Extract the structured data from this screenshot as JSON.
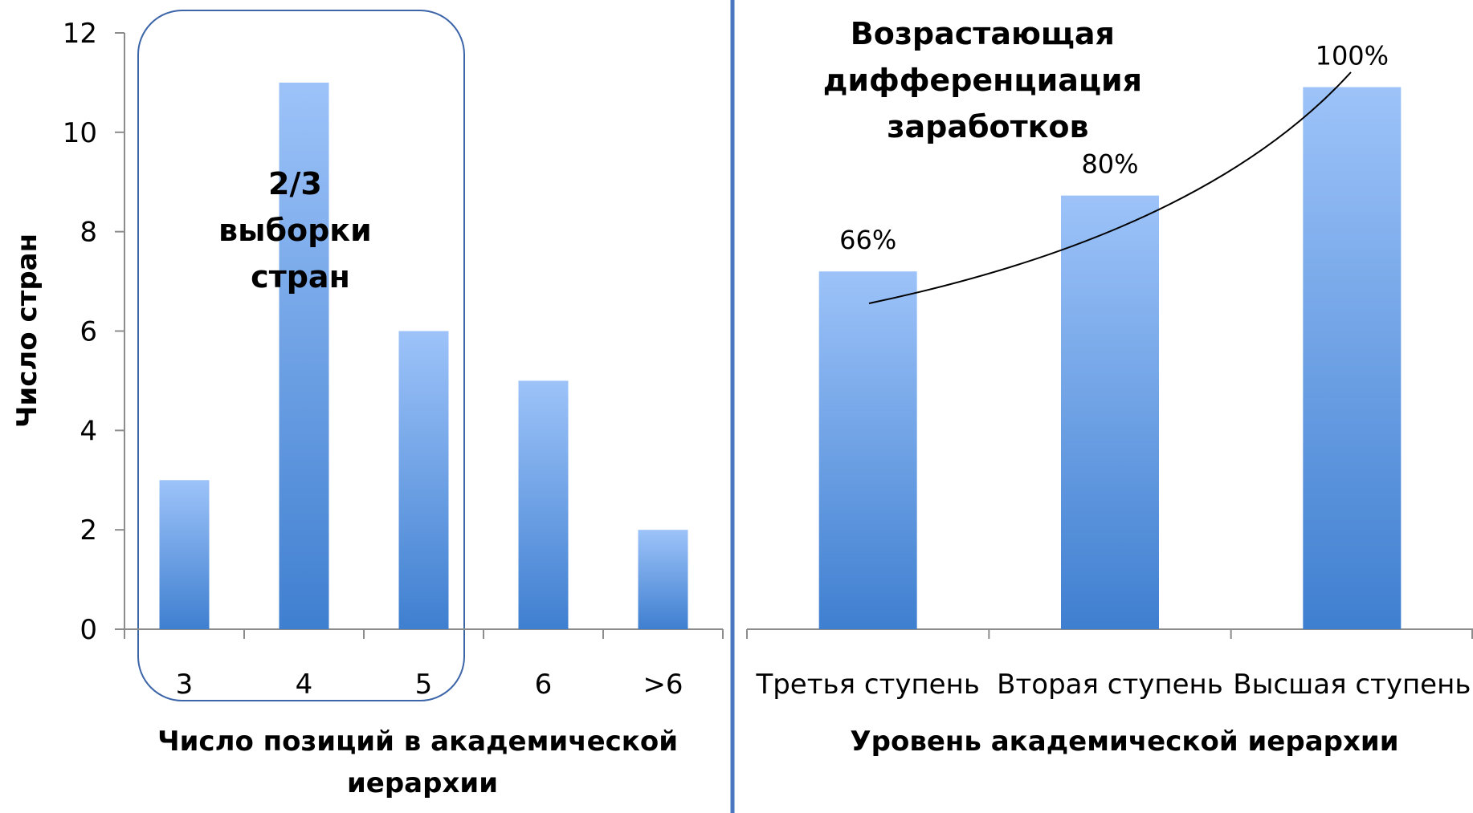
{
  "chart_data": [
    {
      "type": "bar",
      "categories": [
        "3",
        "4",
        "5",
        "6",
        ">6"
      ],
      "values": [
        3,
        11,
        6,
        5,
        2
      ],
      "xlabel": "Число позиций в академической иерархии",
      "ylabel": "Число стран",
      "ylim": [
        0,
        12
      ],
      "yticks": [
        "0",
        "2",
        "4",
        "6",
        "8",
        "10",
        "12"
      ],
      "highlight": {
        "categories": [
          "3",
          "4",
          "5"
        ],
        "note": [
          "2/3",
          "выборки",
          "стран"
        ]
      },
      "grid": false,
      "legend": "none"
    },
    {
      "type": "bar",
      "categories": [
        "Третья ступень",
        "Вторая ступень",
        "Высшая ступень"
      ],
      "values": [
        66,
        80,
        100
      ],
      "data_labels": [
        "66%",
        "80%",
        "100%"
      ],
      "xlabel": "Уровень академической иерархии",
      "ylabel": "",
      "ylim": [
        0,
        110
      ],
      "title_lines": [
        "Возрастающая",
        "дифференциация",
        "заработков"
      ],
      "grid": false,
      "legend": "none"
    }
  ],
  "colors": {
    "bar_top": "#9dc3f9",
    "bar_bottom": "#3f7fd0",
    "highlight_stroke": "#3c64a8",
    "divider": "#4a77c0",
    "axis": "#8c8c8c"
  }
}
